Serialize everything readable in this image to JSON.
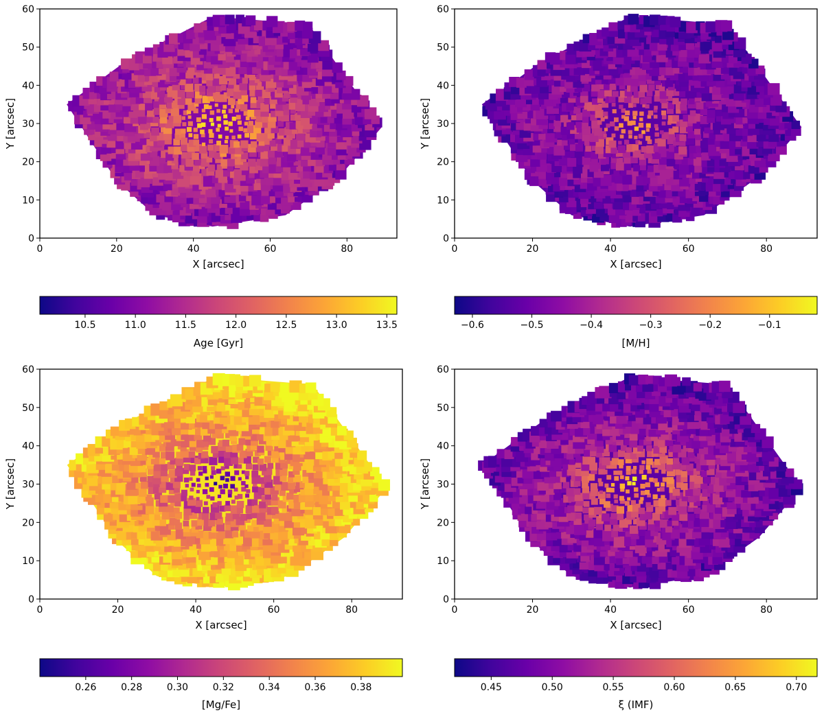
{
  "chart_data": [
    {
      "type": "heatmap",
      "title": "",
      "xlabel": "X [arcsec]",
      "ylabel": "Y [arcsec]",
      "xlim": [
        0,
        93
      ],
      "ylim": [
        0,
        60
      ],
      "xticks": [
        0,
        20,
        40,
        60,
        80
      ],
      "yticks": [
        0,
        10,
        20,
        30,
        40,
        50,
        60
      ],
      "grid": false,
      "colormap": "plasma",
      "colorbar": {
        "label": "Age [Gyr]",
        "range": [
          10.05,
          13.6
        ],
        "ticks": [
          10.5,
          11.0,
          11.5,
          12.0,
          12.5,
          13.0,
          13.5
        ],
        "tick_labels": [
          "10.5",
          "11.0",
          "11.5",
          "12.0",
          "12.5",
          "13.0",
          "13.5"
        ]
      },
      "field": {
        "center": [
          46,
          30
        ],
        "values": {
          "center": 13.5,
          "inner": 12.7,
          "mid": 11.7,
          "outer": 11.0
        },
        "trend": "old core, younger outskirts"
      }
    },
    {
      "type": "heatmap",
      "title": "",
      "xlabel": "X [arcsec]",
      "ylabel": "Y [arcsec]",
      "xlim": [
        0,
        93
      ],
      "ylim": [
        0,
        60
      ],
      "xticks": [
        0,
        20,
        40,
        60,
        80
      ],
      "yticks": [
        0,
        10,
        20,
        30,
        40,
        50,
        60
      ],
      "grid": false,
      "colormap": "plasma",
      "colorbar": {
        "label": "[M/H]",
        "range": [
          -0.63,
          -0.02
        ],
        "ticks": [
          -0.6,
          -0.5,
          -0.4,
          -0.3,
          -0.2,
          -0.1
        ],
        "tick_labels": [
          "−0.6",
          "−0.5",
          "−0.4",
          "−0.3",
          "−0.2",
          "−0.1"
        ]
      },
      "field": {
        "center": [
          46,
          30
        ],
        "values": {
          "center": -0.1,
          "inner": -0.3,
          "mid": -0.45,
          "outer": -0.53
        },
        "trend": "metal-rich core, metal-poor outskirts"
      }
    },
    {
      "type": "heatmap",
      "title": "",
      "xlabel": "X [arcsec]",
      "ylabel": "Y [arcsec]",
      "xlim": [
        0,
        93
      ],
      "ylim": [
        0,
        60
      ],
      "xticks": [
        0,
        20,
        40,
        60,
        80
      ],
      "yticks": [
        0,
        10,
        20,
        30,
        40,
        50,
        60
      ],
      "grid": false,
      "colormap": "plasma",
      "colorbar": {
        "label": "[Mg/Fe]",
        "range": [
          0.24,
          0.398
        ],
        "ticks": [
          0.26,
          0.28,
          0.3,
          0.32,
          0.34,
          0.36,
          0.38
        ],
        "tick_labels": [
          "0.26",
          "0.28",
          "0.30",
          "0.32",
          "0.34",
          "0.36",
          "0.38"
        ]
      },
      "field": {
        "center": [
          46,
          30
        ],
        "values": {
          "center": 0.25,
          "inner": 0.3,
          "mid": 0.35,
          "outer": 0.39
        },
        "trend": "low core, alpha-enhanced outskirts"
      }
    },
    {
      "type": "heatmap",
      "title": "",
      "xlabel": "X [arcsec]",
      "ylabel": "Y [arcsec]",
      "xlim": [
        0,
        93
      ],
      "ylim": [
        0,
        60
      ],
      "xticks": [
        0,
        20,
        40,
        60,
        80
      ],
      "yticks": [
        0,
        10,
        20,
        30,
        40,
        50,
        60
      ],
      "grid": false,
      "colormap": "plasma",
      "colorbar": {
        "label": "ξ (IMF)",
        "range": [
          0.42,
          0.717
        ],
        "ticks": [
          0.45,
          0.5,
          0.55,
          0.6,
          0.65,
          0.7
        ],
        "tick_labels": [
          "0.45",
          "0.50",
          "0.55",
          "0.60",
          "0.65",
          "0.70"
        ]
      },
      "field": {
        "center": [
          46,
          30
        ],
        "values": {
          "center": 0.7,
          "inner": 0.62,
          "mid": 0.53,
          "outer": 0.47
        },
        "trend": "bottom-heavy core, lighter outskirts"
      }
    }
  ]
}
